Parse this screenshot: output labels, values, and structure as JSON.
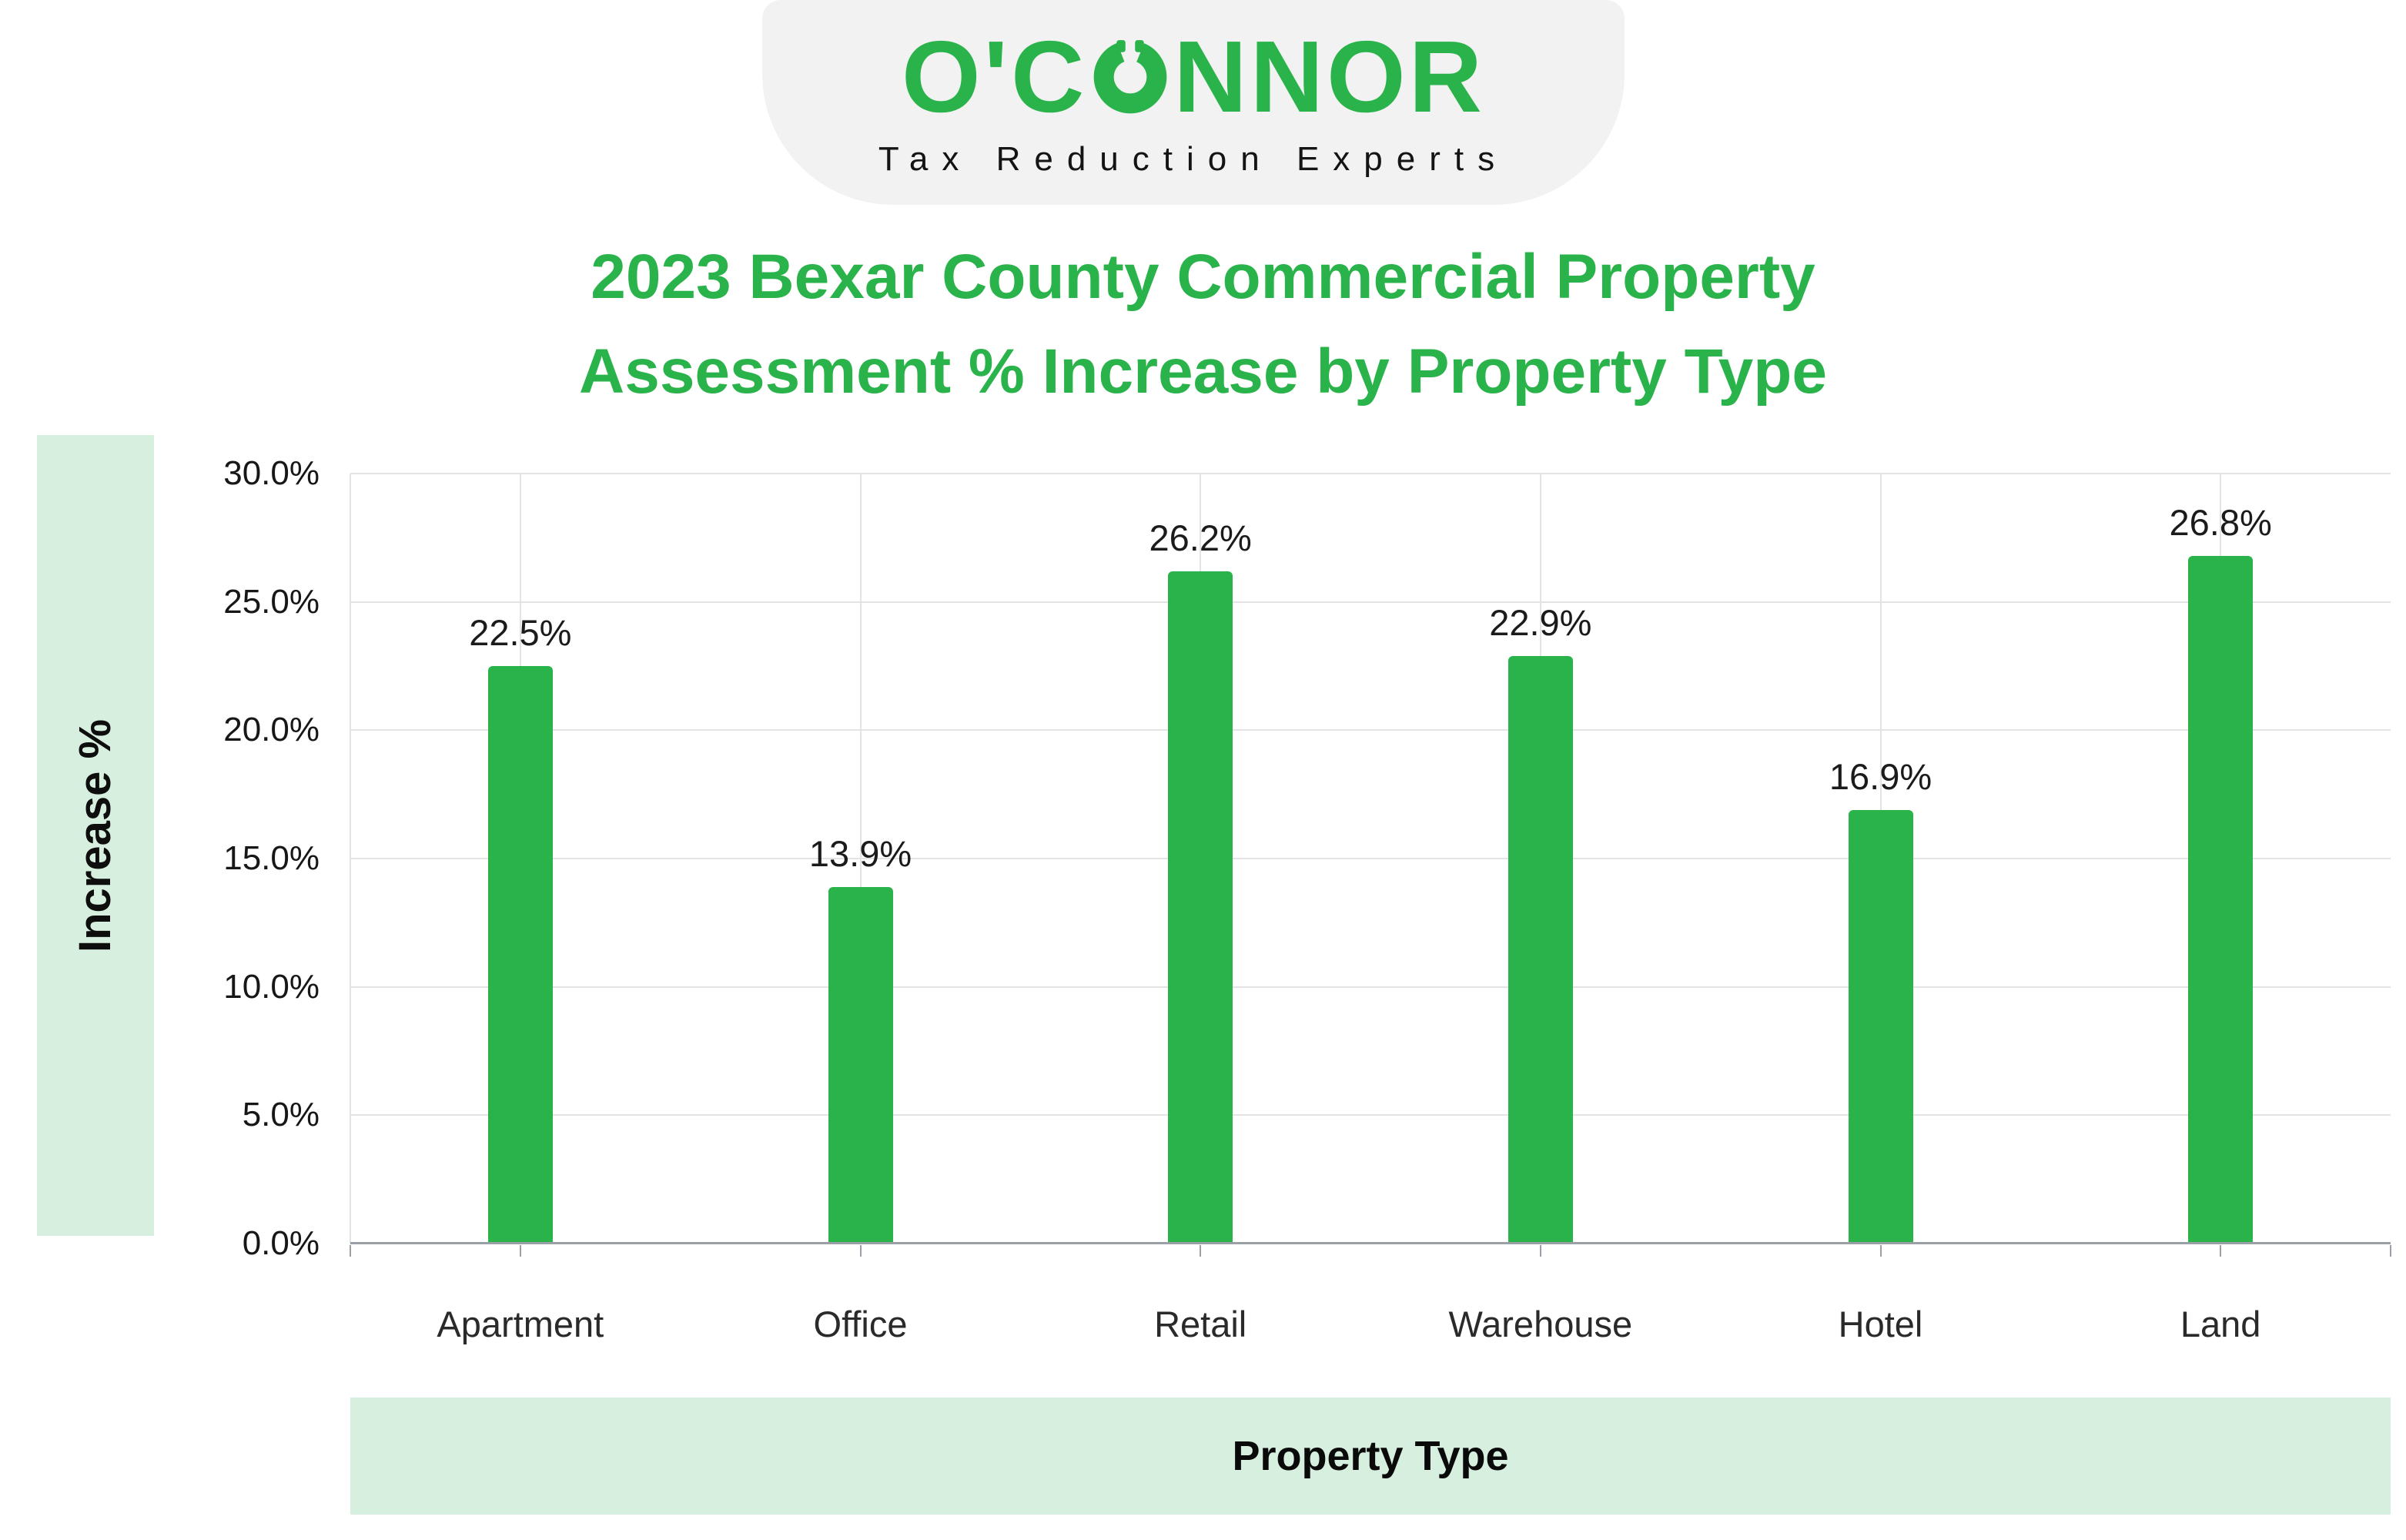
{
  "logo": {
    "name": "O'CONNOR",
    "name_pre": "O'C",
    "name_post": "NNOR",
    "tagline": "Tax Reduction Experts"
  },
  "title": {
    "line1": "2023 Bexar County Commercial Property",
    "line2": "Assessment % Increase by Property Type"
  },
  "chart_data": {
    "type": "bar",
    "title": "2023 Bexar County Commercial Property Assessment % Increase by Property Type",
    "categories": [
      "Apartment",
      "Office",
      "Retail",
      "Warehouse",
      "Hotel",
      "Land"
    ],
    "values": [
      22.5,
      13.9,
      26.2,
      22.9,
      16.9,
      26.8
    ],
    "value_labels": [
      "22.5%",
      "13.9%",
      "26.2%",
      "22.9%",
      "16.9%",
      "26.8%"
    ],
    "xlabel": "Property Type",
    "ylabel": "Increase %",
    "ylim": [
      0,
      30
    ],
    "yticks": [
      0,
      5,
      10,
      15,
      20,
      25,
      30
    ],
    "ytick_labels": [
      "0.0%",
      "5.0%",
      "10.0%",
      "15.0%",
      "20.0%",
      "25.0%",
      "30.0%"
    ],
    "grid": true,
    "legend": "none",
    "bar_color": "#2bb34b"
  },
  "colors": {
    "accent_green": "#2bb34b",
    "band_green": "#d7efde",
    "logo_bg": "#f2f2f3",
    "gridline": "#e4e4e6",
    "axis": "#9aa0a5",
    "text_dark": "#1b1b1b"
  }
}
